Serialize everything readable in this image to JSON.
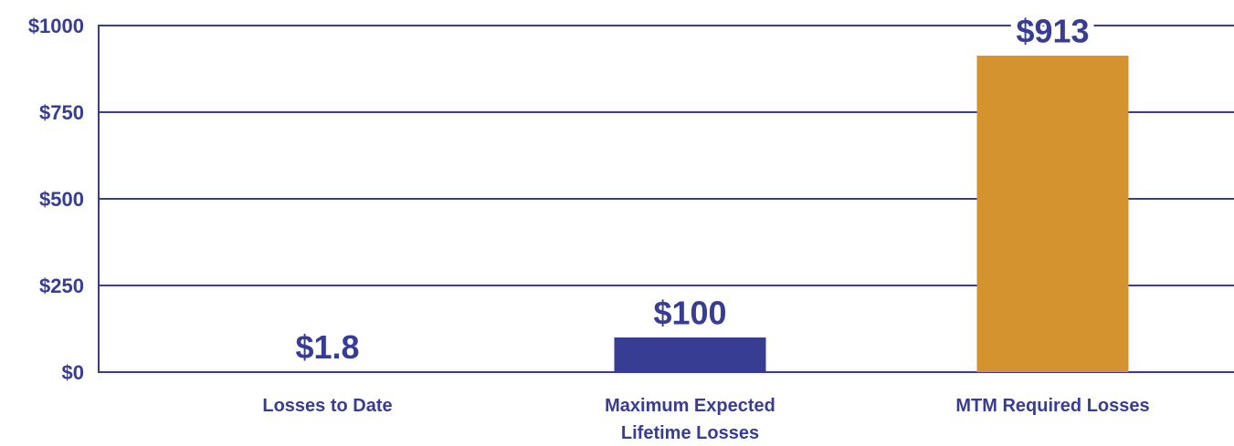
{
  "chart_data": {
    "type": "bar",
    "categories": [
      "Losses to Date",
      "Maximum Expected Lifetime Losses",
      "MTM Required Losses"
    ],
    "values": [
      1.8,
      100,
      913
    ],
    "value_labels": [
      "$1.8",
      "$100",
      "$913"
    ],
    "colors": [
      "#383d94",
      "#383d94",
      "#d4932f"
    ],
    "ylim": [
      0,
      1000
    ],
    "yticks": [
      {
        "value": 0,
        "label": "$0"
      },
      {
        "value": 250,
        "label": "$250"
      },
      {
        "value": 500,
        "label": "$500"
      },
      {
        "value": 750,
        "label": "$750"
      },
      {
        "value": 1000,
        "label": "$1000"
      }
    ],
    "grid": true
  }
}
